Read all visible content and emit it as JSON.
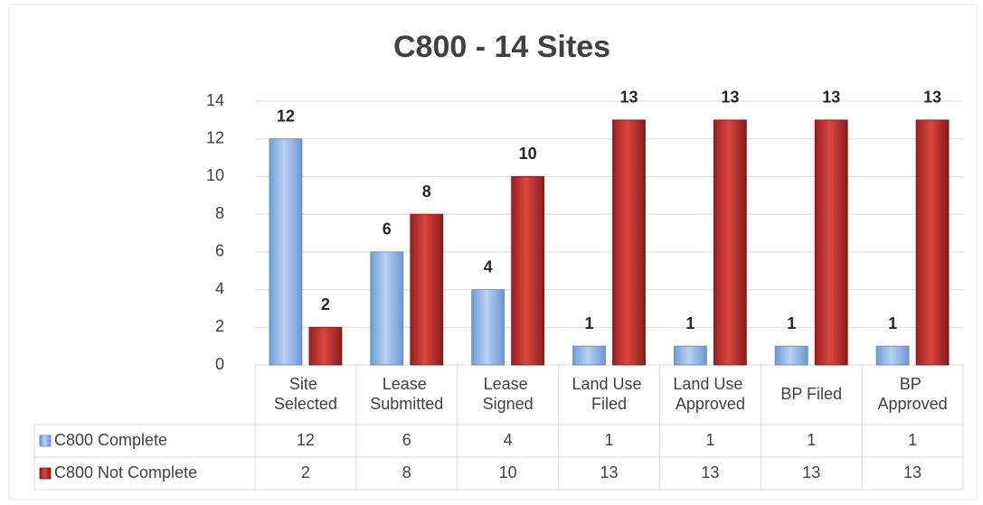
{
  "chart_data": {
    "type": "bar",
    "title": "C800 - 14 Sites",
    "categories": [
      "Site Selected",
      "Lease Submitted",
      "Lease Signed",
      "Land Use Filed",
      "Land Use Approved",
      "BP Filed",
      "BP Approved"
    ],
    "series": [
      {
        "name": "C800 Complete",
        "color": "#8fb4e3",
        "values": [
          12,
          6,
          4,
          1,
          1,
          1,
          1
        ]
      },
      {
        "name": "C800 Not Complete",
        "color": "#c0392b",
        "values": [
          2,
          8,
          10,
          13,
          13,
          13,
          13
        ]
      }
    ],
    "ylim": [
      0,
      14
    ],
    "yticks": [
      0,
      2,
      4,
      6,
      8,
      10,
      12,
      14
    ],
    "grid": true,
    "data_table": true
  }
}
